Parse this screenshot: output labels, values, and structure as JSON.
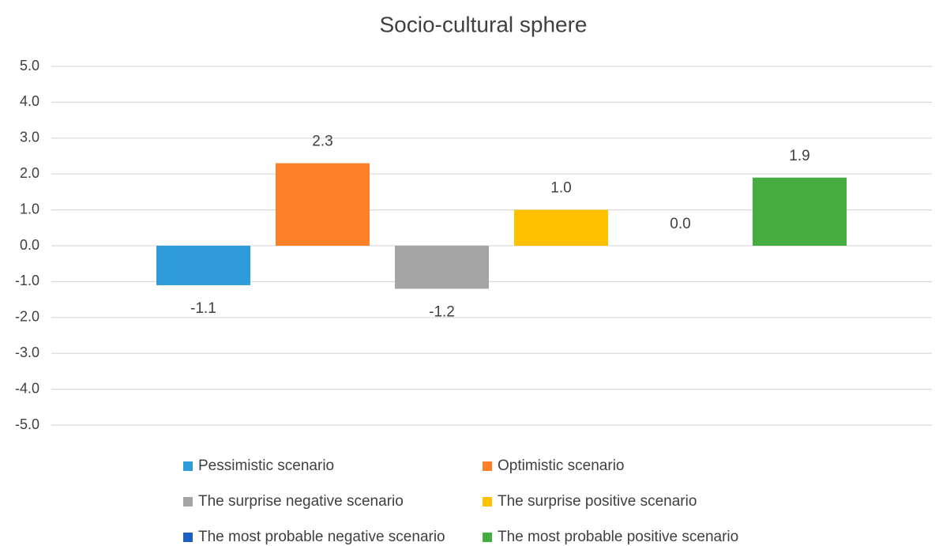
{
  "chart_data": {
    "type": "bar",
    "title": "Socio-cultural sphere",
    "categories": [
      null
    ],
    "series": [
      {
        "name": "Pessimistic scenario",
        "color": "#2e9cd8",
        "values": [
          -1.1
        ],
        "value_labels": [
          "-1.1"
        ]
      },
      {
        "name": "Optimistic scenario",
        "color": "#fd7f27",
        "values": [
          2.3
        ],
        "value_labels": [
          "2.3"
        ]
      },
      {
        "name": "The surprise negative scenario",
        "color": "#a5a5a5",
        "values": [
          -1.2
        ],
        "value_labels": [
          "-1.2"
        ]
      },
      {
        "name": "The surprise positive scenario",
        "color": "#ffc000",
        "values": [
          1.0
        ],
        "value_labels": [
          "1.0"
        ]
      },
      {
        "name": "The most probable negative scenario",
        "color": "#1f5fbf",
        "values": [
          0.0
        ],
        "value_labels": [
          "0.0"
        ]
      },
      {
        "name": "The most probable positive scenario",
        "color": "#46ac3f",
        "values": [
          1.9
        ],
        "value_labels": [
          "1.9"
        ]
      }
    ],
    "ylim": [
      -5,
      5
    ],
    "yticks": [
      {
        "value": 5,
        "label": "5.0"
      },
      {
        "value": 4,
        "label": "4.0"
      },
      {
        "value": 3,
        "label": "3.0"
      },
      {
        "value": 2,
        "label": "2.0"
      },
      {
        "value": 1,
        "label": "1.0"
      },
      {
        "value": 0,
        "label": "0.0"
      },
      {
        "value": -1,
        "label": "-1.0"
      },
      {
        "value": -2,
        "label": "-2.0"
      },
      {
        "value": -3,
        "label": "-3.0"
      },
      {
        "value": -4,
        "label": "-4.0"
      },
      {
        "value": -5,
        "label": "-5.0"
      }
    ],
    "grid": true,
    "legend": "bottom"
  }
}
